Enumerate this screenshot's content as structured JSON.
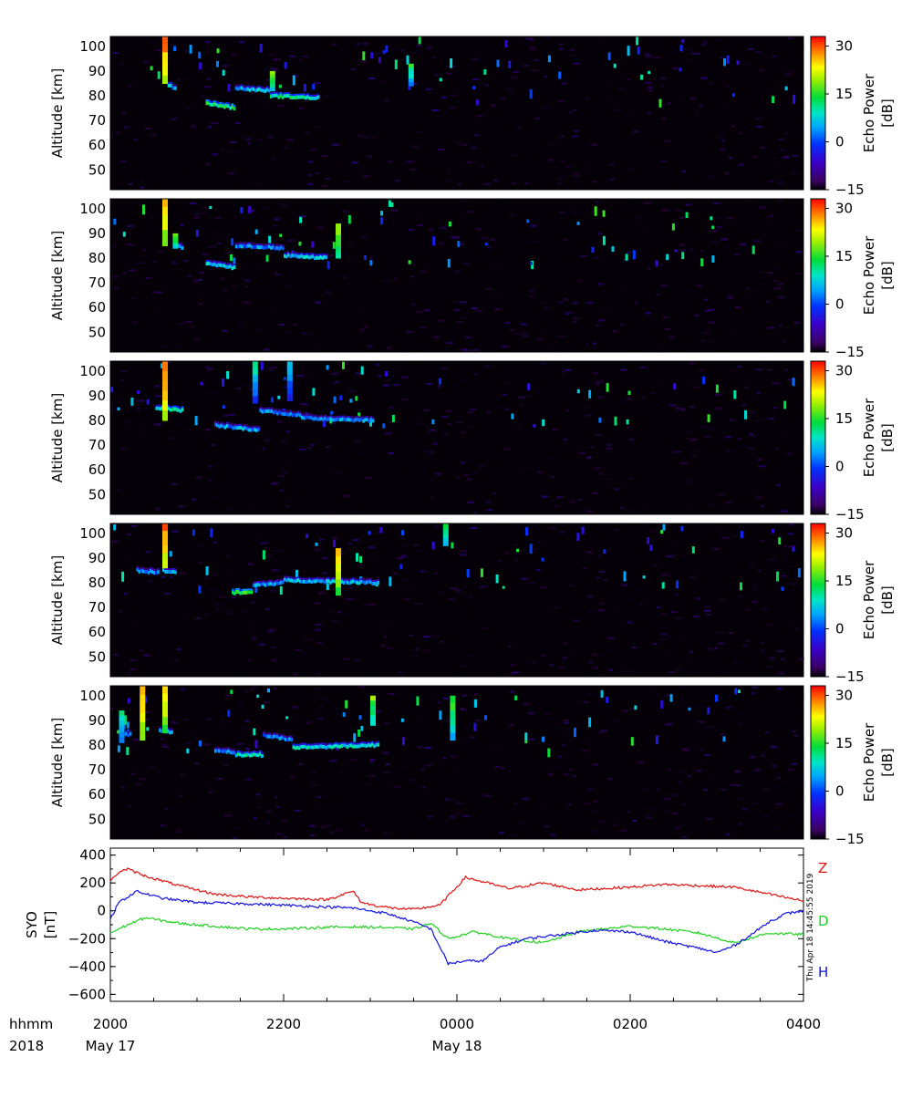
{
  "chart_data": {
    "type": "heatmap",
    "panels": [
      {
        "ylabel": "Altitude [km]",
        "yticks": [
          50,
          60,
          70,
          80,
          90,
          100
        ],
        "ylim": [
          42,
          104
        ],
        "colorbar": {
          "label_line1": "Echo Power",
          "label_line2": "[dB]",
          "ticks": [
            -15,
            0,
            15,
            30
          ],
          "range": [
            -15,
            33
          ]
        },
        "echo_layers": [
          {
            "t_start": 0.33,
            "t_end": 0.38,
            "alt_start": 84,
            "alt_end": 83,
            "power_db": 6
          },
          {
            "t_start": 0.55,
            "t_end": 0.72,
            "alt_start": 77,
            "alt_end": 75,
            "power_db": 12
          },
          {
            "t_start": 0.72,
            "t_end": 0.92,
            "alt_start": 83,
            "alt_end": 82,
            "power_db": 5
          },
          {
            "t_start": 0.92,
            "t_end": 1.2,
            "alt_start": 80,
            "alt_end": 79,
            "power_db": 10
          }
        ],
        "vertical_streaks": [
          {
            "t": 0.3,
            "alt_low": 85,
            "alt_high": 104,
            "power_db": 30
          },
          {
            "t": 0.92,
            "alt_low": 82,
            "alt_high": 90,
            "power_db": 18
          },
          {
            "t": 1.72,
            "alt_low": 84,
            "alt_high": 93,
            "power_db": 14
          }
        ]
      },
      {
        "ylabel": "Altitude [km]",
        "yticks": [
          50,
          60,
          70,
          80,
          90,
          100
        ],
        "ylim": [
          42,
          104
        ],
        "colorbar": {
          "label_line1": "Echo Power",
          "label_line2": "[dB]",
          "ticks": [
            -15,
            0,
            15,
            30
          ],
          "range": [
            -15,
            33
          ]
        },
        "echo_layers": [
          {
            "t_start": 0.36,
            "t_end": 0.42,
            "alt_start": 86,
            "alt_end": 84,
            "power_db": 4
          },
          {
            "t_start": 0.55,
            "t_end": 0.72,
            "alt_start": 78,
            "alt_end": 76,
            "power_db": 6
          },
          {
            "t_start": 0.72,
            "t_end": 1.0,
            "alt_start": 85,
            "alt_end": 84,
            "power_db": 3
          },
          {
            "t_start": 1.0,
            "t_end": 1.25,
            "alt_start": 81,
            "alt_end": 80,
            "power_db": 6
          }
        ],
        "vertical_streaks": [
          {
            "t": 0.3,
            "alt_low": 85,
            "alt_high": 104,
            "power_db": 28
          },
          {
            "t": 0.36,
            "alt_low": 84,
            "alt_high": 90,
            "power_db": 18
          },
          {
            "t": 1.3,
            "alt_low": 80,
            "alt_high": 94,
            "power_db": 20
          }
        ]
      },
      {
        "ylabel": "Altitude [km]",
        "yticks": [
          50,
          60,
          70,
          80,
          90,
          100
        ],
        "ylim": [
          42,
          104
        ],
        "colorbar": {
          "label_line1": "Echo Power",
          "label_line2": "[dB]",
          "ticks": [
            -15,
            0,
            15,
            30
          ],
          "range": [
            -15,
            33
          ]
        },
        "echo_layers": [
          {
            "t_start": 0.26,
            "t_end": 0.42,
            "alt_start": 85,
            "alt_end": 84,
            "power_db": 10
          },
          {
            "t_start": 0.6,
            "t_end": 0.86,
            "alt_start": 78,
            "alt_end": 76,
            "power_db": 4
          },
          {
            "t_start": 0.86,
            "t_end": 1.1,
            "alt_start": 84,
            "alt_end": 82,
            "power_db": 3
          },
          {
            "t_start": 1.1,
            "t_end": 1.52,
            "alt_start": 81,
            "alt_end": 80,
            "power_db": 4
          }
        ],
        "vertical_streaks": [
          {
            "t": 0.3,
            "alt_low": 80,
            "alt_high": 104,
            "power_db": 30
          },
          {
            "t": 0.82,
            "alt_low": 87,
            "alt_high": 104,
            "power_db": 10
          },
          {
            "t": 1.02,
            "alt_low": 88,
            "alt_high": 104,
            "power_db": 8
          }
        ]
      },
      {
        "ylabel": "Altitude [km]",
        "yticks": [
          50,
          60,
          70,
          80,
          90,
          100
        ],
        "ylim": [
          42,
          104
        ],
        "colorbar": {
          "label_line1": "Echo Power",
          "label_line2": "[dB]",
          "ticks": [
            -15,
            0,
            15,
            30
          ],
          "range": [
            -15,
            33
          ]
        },
        "echo_layers": [
          {
            "t_start": 0.15,
            "t_end": 0.28,
            "alt_start": 85,
            "alt_end": 84,
            "power_db": 3
          },
          {
            "t_start": 0.3,
            "t_end": 0.38,
            "alt_start": 85,
            "alt_end": 84,
            "power_db": 6
          },
          {
            "t_start": 0.7,
            "t_end": 0.82,
            "alt_start": 76,
            "alt_end": 76,
            "power_db": 14
          },
          {
            "t_start": 0.82,
            "t_end": 1.0,
            "alt_start": 79,
            "alt_end": 80,
            "power_db": 4
          },
          {
            "t_start": 1.0,
            "t_end": 1.55,
            "alt_start": 81,
            "alt_end": 80,
            "power_db": 5
          }
        ],
        "vertical_streaks": [
          {
            "t": 0.3,
            "alt_low": 86,
            "alt_high": 104,
            "power_db": 30
          },
          {
            "t": 1.3,
            "alt_low": 75,
            "alt_high": 94,
            "power_db": 26
          },
          {
            "t": 1.92,
            "alt_low": 95,
            "alt_high": 104,
            "power_db": 16
          }
        ]
      },
      {
        "ylabel": "Altitude [km]",
        "yticks": [
          50,
          60,
          70,
          80,
          90,
          100
        ],
        "ylim": [
          42,
          104
        ],
        "colorbar": {
          "label_line1": "Echo Power",
          "label_line2": "[dB]",
          "ticks": [
            -15,
            0,
            15,
            30
          ],
          "range": [
            -15,
            33
          ]
        },
        "echo_layers": [
          {
            "t_start": 0.05,
            "t_end": 0.12,
            "alt_start": 85,
            "alt_end": 84,
            "power_db": 4
          },
          {
            "t_start": 0.28,
            "t_end": 0.36,
            "alt_start": 86,
            "alt_end": 85,
            "power_db": 3
          },
          {
            "t_start": 0.6,
            "t_end": 0.72,
            "alt_start": 78,
            "alt_end": 77,
            "power_db": 3
          },
          {
            "t_start": 0.72,
            "t_end": 0.88,
            "alt_start": 76,
            "alt_end": 76,
            "power_db": 9
          },
          {
            "t_start": 0.88,
            "t_end": 1.05,
            "alt_start": 84,
            "alt_end": 82,
            "power_db": 3
          },
          {
            "t_start": 1.05,
            "t_end": 1.55,
            "alt_start": 79,
            "alt_end": 80,
            "power_db": 8
          }
        ],
        "vertical_streaks": [
          {
            "t": 0.05,
            "alt_low": 81,
            "alt_high": 94,
            "power_db": 12
          },
          {
            "t": 0.17,
            "alt_low": 82,
            "alt_high": 104,
            "power_db": 28
          },
          {
            "t": 0.3,
            "alt_low": 85,
            "alt_high": 104,
            "power_db": 26
          },
          {
            "t": 1.5,
            "alt_low": 88,
            "alt_high": 100,
            "power_db": 18
          },
          {
            "t": 1.96,
            "alt_low": 82,
            "alt_high": 100,
            "power_db": 16
          }
        ]
      }
    ],
    "magnetometer": {
      "ylabel_line1": "SYO",
      "ylabel_line2": "[nT]",
      "yticks": [
        -600,
        -400,
        -200,
        0,
        200,
        400
      ],
      "ylim": [
        -650,
        450
      ],
      "side_label": "Thu Apr 18 14:45:55 2019",
      "series": [
        {
          "name": "Z",
          "color": "#e01010",
          "x": [
            0,
            0.05,
            0.1,
            0.2,
            0.4,
            0.6,
            0.8,
            1.0,
            1.25,
            1.4,
            1.45,
            1.52,
            1.62,
            1.75,
            1.9,
            2.05,
            2.3,
            2.5,
            2.7,
            3.0,
            3.2,
            3.4,
            3.6,
            3.8,
            4.0
          ],
          "values": [
            210,
            280,
            300,
            250,
            180,
            120,
            100,
            90,
            80,
            140,
            60,
            40,
            20,
            10,
            40,
            240,
            160,
            200,
            150,
            170,
            190,
            180,
            170,
            120,
            70
          ]
        },
        {
          "name": "D",
          "color": "#20d020",
          "x": [
            0,
            0.1,
            0.2,
            0.4,
            0.6,
            0.8,
            1.0,
            1.2,
            1.4,
            1.6,
            1.75,
            1.85,
            1.95,
            2.1,
            2.3,
            2.5,
            2.7,
            3.0,
            3.2,
            3.4,
            3.6,
            3.8,
            4.0
          ],
          "values": [
            -160,
            -100,
            -50,
            -90,
            -110,
            -130,
            -130,
            -120,
            -115,
            -120,
            -130,
            -90,
            -200,
            -150,
            -200,
            -230,
            -150,
            -110,
            -130,
            -160,
            -230,
            -160,
            -170
          ]
        },
        {
          "name": "H",
          "color": "#1010e0",
          "x": [
            0,
            0.05,
            0.15,
            0.3,
            0.5,
            0.8,
            1.0,
            1.2,
            1.4,
            1.6,
            1.75,
            1.85,
            1.95,
            2.05,
            2.15,
            2.25,
            2.4,
            2.6,
            2.8,
            3.0,
            3.2,
            3.4,
            3.5,
            3.6,
            3.7,
            3.8,
            3.9,
            4.0
          ],
          "values": [
            -60,
            60,
            140,
            90,
            60,
            50,
            40,
            30,
            20,
            -20,
            -80,
            -130,
            -380,
            -360,
            -360,
            -260,
            -200,
            -170,
            -140,
            -150,
            -220,
            -270,
            -300,
            -250,
            -170,
            -80,
            -20,
            0
          ]
        }
      ]
    },
    "x_axis": {
      "row1_label": "hhmm",
      "row2_label": "2018",
      "range_hours": [
        0,
        4
      ],
      "ticks": [
        {
          "t": 0,
          "label": "2000",
          "date": "May 17"
        },
        {
          "t": 1,
          "label": "2200",
          "date": ""
        },
        {
          "t": 2,
          "label": "0000",
          "date": "May 18"
        },
        {
          "t": 3,
          "label": "0200",
          "date": ""
        },
        {
          "t": 4,
          "label": "0400",
          "date": ""
        }
      ],
      "minor_per_major": 4
    }
  }
}
